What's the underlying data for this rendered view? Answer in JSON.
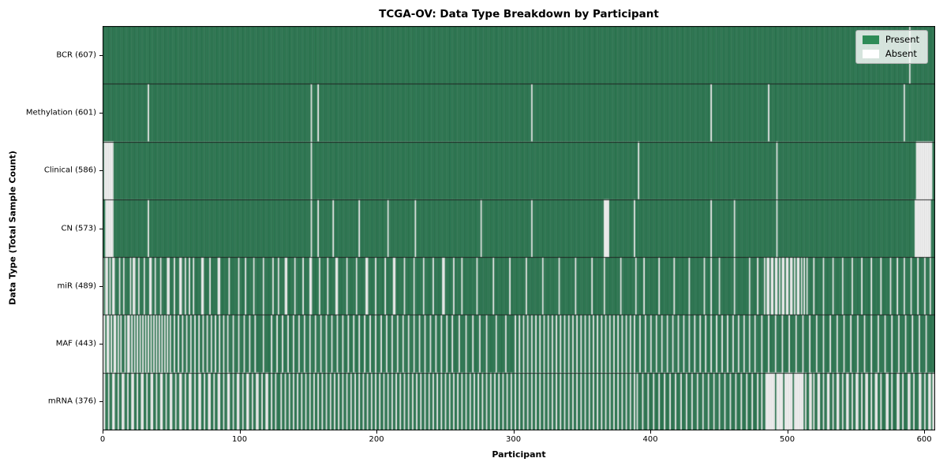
{
  "chart_data": {
    "type": "heatmap",
    "title": "TCGA-OV: Data Type Breakdown by Participant",
    "xlabel": "Participant",
    "ylabel": "Data Type (Total Sample Count)",
    "x_ticks": [
      0,
      100,
      200,
      300,
      400,
      500,
      600
    ],
    "xlim": [
      0,
      608
    ],
    "n_participants": 608,
    "grid": false,
    "legend_position": "upper right",
    "legend": [
      {
        "label": "Present",
        "color": "#2e8b57"
      },
      {
        "label": "Absent",
        "color": "#ffffff"
      }
    ],
    "colors": {
      "present_fill": "#37875f",
      "present_stripe": "rgba(10,50,30,0.55)",
      "absent_fill": "#ffffff",
      "absent_stripe": "rgba(130,130,130,0.45)",
      "row_divider": "#1a1a1a",
      "plot_border": "#000000"
    },
    "cell_values": {
      "present": 1,
      "absent": 0
    },
    "rows": [
      {
        "label": "BCR (607)",
        "name": "BCR",
        "present_count": 607,
        "absent_count": 1,
        "absent_participant_runs": [
          589
        ]
      },
      {
        "label": "Methylation (601)",
        "name": "Methylation",
        "present_count": 601,
        "absent_count": 7,
        "absent_participant_runs": [
          33,
          152,
          157,
          313,
          444,
          486,
          585
        ]
      },
      {
        "label": "Clinical (586)",
        "name": "Clinical",
        "present_count": 586,
        "absent_count": 22,
        "absent_participant_runs": [
          [
            1,
            7
          ],
          152,
          391,
          492,
          [
            594,
            12
          ]
        ]
      },
      {
        "label": "CN (573)",
        "name": "CN",
        "present_count": 573,
        "absent_count": 35,
        "absent_participant_runs": [
          [
            2,
            6
          ],
          33,
          152,
          157,
          168,
          187,
          208,
          228,
          276,
          313,
          [
            366,
            4
          ],
          388,
          444,
          461,
          492,
          [
            593,
            12
          ]
        ]
      },
      {
        "label": "miR (489)",
        "name": "miR",
        "present_count": 489,
        "absent_count": 119,
        "absent_participant_runs": [
          0,
          [
            2,
            2
          ],
          5,
          [
            7,
            2
          ],
          12,
          15,
          20,
          [
            22,
            2
          ],
          26,
          30,
          [
            34,
            2
          ],
          38,
          42,
          [
            47,
            2
          ],
          52,
          [
            56,
            2
          ],
          60,
          63,
          66,
          [
            72,
            2
          ],
          78,
          [
            84,
            2
          ],
          92,
          99,
          104,
          110,
          117,
          124,
          128,
          [
            133,
            2
          ],
          140,
          146,
          [
            151,
            2
          ],
          158,
          164,
          [
            170,
            2
          ],
          178,
          185,
          [
            192,
            2
          ],
          199,
          206,
          [
            212,
            2
          ],
          220,
          227,
          234,
          241,
          [
            248,
            2
          ],
          256,
          262,
          273,
          285,
          297,
          309,
          321,
          333,
          345,
          357,
          366,
          378,
          389,
          395,
          406,
          417,
          428,
          439,
          444,
          450,
          461,
          472,
          478,
          483,
          [
            485,
            2
          ],
          [
            488,
            2
          ],
          [
            491,
            2
          ],
          494,
          [
            496,
            2
          ],
          [
            499,
            2
          ],
          [
            502,
            2
          ],
          505,
          [
            507,
            2
          ],
          510,
          512,
          514,
          519,
          526,
          533,
          540,
          547,
          554,
          561,
          568,
          575,
          580,
          585,
          590,
          595,
          600,
          604
        ]
      },
      {
        "label": "MAF (443)",
        "name": "MAF",
        "present_count": 443,
        "absent_count": 165,
        "absent_participant_runs": [
          [
            0,
            2
          ],
          [
            3,
            2
          ],
          6,
          [
            8,
            2
          ],
          11,
          13,
          16,
          [
            18,
            2
          ],
          21,
          23,
          25,
          27,
          29,
          31,
          33,
          35,
          37,
          39,
          41,
          43,
          45,
          47,
          49,
          52,
          55,
          58,
          61,
          64,
          67,
          70,
          73,
          76,
          79,
          82,
          85,
          88,
          91,
          95,
          99,
          103,
          107,
          111,
          117,
          123,
          127,
          131,
          135,
          139,
          143,
          147,
          151,
          155,
          159,
          163,
          167,
          171,
          175,
          179,
          183,
          187,
          191,
          195,
          199,
          203,
          207,
          211,
          215,
          219,
          223,
          227,
          231,
          235,
          239,
          243,
          247,
          251,
          255,
          260,
          265,
          270,
          275,
          280,
          287,
          294,
          301,
          304,
          307,
          310,
          313,
          316,
          319,
          322,
          325,
          328,
          331,
          334,
          337,
          340,
          343,
          346,
          349,
          352,
          355,
          358,
          361,
          364,
          367,
          370,
          373,
          376,
          379,
          382,
          385,
          388,
          392,
          396,
          400,
          404,
          408,
          412,
          416,
          420,
          424,
          428,
          432,
          436,
          440,
          444,
          448,
          452,
          456,
          460,
          464,
          468,
          472,
          476,
          481,
          486,
          491,
          496,
          501,
          506,
          511,
          516,
          521,
          526,
          531,
          536,
          541,
          546,
          551,
          556,
          561,
          566,
          571,
          576,
          581,
          586,
          591,
          596,
          601
        ]
      },
      {
        "label": "mRNA (376)",
        "name": "mRNA",
        "present_count": 376,
        "absent_count": 232,
        "absent_participant_runs": [
          [
            0,
            2
          ],
          4,
          [
            7,
            2
          ],
          11,
          [
            14,
            2
          ],
          18,
          [
            21,
            2
          ],
          25,
          [
            28,
            2
          ],
          32,
          [
            35,
            2
          ],
          39,
          [
            42,
            2
          ],
          46,
          [
            49,
            2
          ],
          53,
          [
            56,
            2
          ],
          60,
          [
            63,
            2
          ],
          67,
          [
            70,
            2
          ],
          74,
          [
            77,
            2
          ],
          81,
          [
            84,
            2
          ],
          88,
          [
            91,
            2
          ],
          95,
          [
            98,
            2
          ],
          102,
          [
            105,
            2
          ],
          109,
          [
            112,
            2
          ],
          116,
          [
            119,
            2
          ],
          123,
          126,
          130,
          133,
          136,
          139,
          142,
          145,
          148,
          151,
          154,
          157,
          160,
          163,
          166,
          169,
          172,
          175,
          178,
          181,
          184,
          187,
          190,
          193,
          196,
          199,
          202,
          205,
          208,
          211,
          214,
          217,
          220,
          223,
          226,
          229,
          232,
          235,
          238,
          241,
          244,
          247,
          250,
          253,
          256,
          259,
          262,
          265,
          268,
          271,
          274,
          277,
          280,
          283,
          286,
          289,
          292,
          295,
          298,
          301,
          304,
          307,
          310,
          313,
          316,
          319,
          322,
          325,
          328,
          331,
          334,
          337,
          340,
          343,
          346,
          349,
          352,
          355,
          358,
          361,
          364,
          367,
          370,
          373,
          376,
          379,
          382,
          385,
          388,
          390,
          394,
          398,
          402,
          406,
          410,
          414,
          418,
          422,
          426,
          430,
          434,
          438,
          442,
          446,
          450,
          454,
          458,
          462,
          466,
          470,
          474,
          478,
          481,
          484,
          [
            485,
            6
          ],
          [
            492,
            5
          ],
          [
            498,
            6
          ],
          [
            505,
            7
          ],
          513,
          [
            516,
            2
          ],
          519,
          [
            522,
            2
          ],
          526,
          [
            529,
            2
          ],
          533,
          [
            536,
            2
          ],
          540,
          [
            543,
            2
          ],
          547,
          [
            550,
            2
          ],
          554,
          [
            557,
            2
          ],
          561,
          [
            564,
            2
          ],
          568,
          [
            572,
            2
          ],
          576,
          [
            580,
            2
          ],
          584,
          [
            588,
            2
          ],
          592,
          [
            596,
            2
          ],
          600,
          [
            603,
            2
          ],
          [
            606,
            2
          ]
        ]
      }
    ]
  }
}
